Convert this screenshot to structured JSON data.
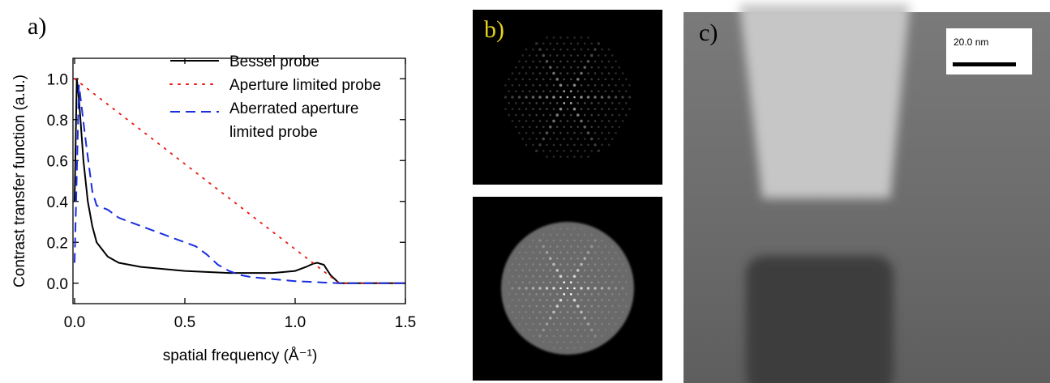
{
  "chart_data": {
    "type": "line",
    "panel_label": "a)",
    "xlabel": "spatial frequency (Å⁻¹)",
    "ylabel": "Contrast transfer function (a.u.)",
    "xlim": [
      0,
      1.5
    ],
    "ylim": [
      -0.1,
      1.1
    ],
    "xticks": [
      {
        "value": 0,
        "label": "0.0"
      },
      {
        "value": 0.5,
        "label": "0.5"
      },
      {
        "value": 1,
        "label": "1.0"
      },
      {
        "value": 1.5,
        "label": "1.5"
      }
    ],
    "yticks": [
      {
        "value": 0,
        "label": "0.0"
      },
      {
        "value": 0.2,
        "label": "0.2"
      },
      {
        "value": 0.4,
        "label": "0.4"
      },
      {
        "value": 0.6,
        "label": "0.6"
      },
      {
        "value": 0.8,
        "label": "0.8"
      },
      {
        "value": 1,
        "label": "1.0"
      }
    ],
    "legend": "upper right",
    "series": [
      {
        "name": "Bessel probe",
        "color": "#000000",
        "style": "solid",
        "x": [
          0,
          0.01,
          0.02,
          0.04,
          0.06,
          0.08,
          0.1,
          0.15,
          0.2,
          0.3,
          0.4,
          0.5,
          0.6,
          0.7,
          0.8,
          0.9,
          1.0,
          1.05,
          1.08,
          1.1,
          1.13,
          1.16,
          1.2,
          1.3,
          1.5
        ],
        "values": [
          0.4,
          1.0,
          0.9,
          0.6,
          0.4,
          0.28,
          0.2,
          0.13,
          0.1,
          0.08,
          0.07,
          0.06,
          0.055,
          0.05,
          0.05,
          0.05,
          0.06,
          0.08,
          0.095,
          0.1,
          0.09,
          0.04,
          0,
          0,
          0
        ]
      },
      {
        "name": "Aperture limited probe",
        "color": "#e8140c",
        "style": "dotted",
        "x": [
          0,
          1.2,
          1.5
        ],
        "values": [
          1.0,
          0,
          0
        ]
      },
      {
        "name": "Aberrated aperture\n limited probe",
        "color": "#1a2ee0",
        "style": "dashed",
        "x": [
          0,
          0.02,
          0.05,
          0.08,
          0.1,
          0.15,
          0.2,
          0.3,
          0.4,
          0.5,
          0.55,
          0.6,
          0.65,
          0.7,
          0.75,
          0.8,
          0.9,
          1.0,
          1.1,
          1.2,
          1.5
        ],
        "values": [
          0.1,
          0.97,
          0.7,
          0.45,
          0.38,
          0.36,
          0.32,
          0.28,
          0.24,
          0.2,
          0.18,
          0.14,
          0.09,
          0.06,
          0.04,
          0.03,
          0.02,
          0.01,
          0.005,
          0,
          0
        ]
      }
    ]
  },
  "images": [
    {
      "label": "b)"
    },
    {
      "label": "c)",
      "scale_bar": "20.0 nm"
    }
  ]
}
